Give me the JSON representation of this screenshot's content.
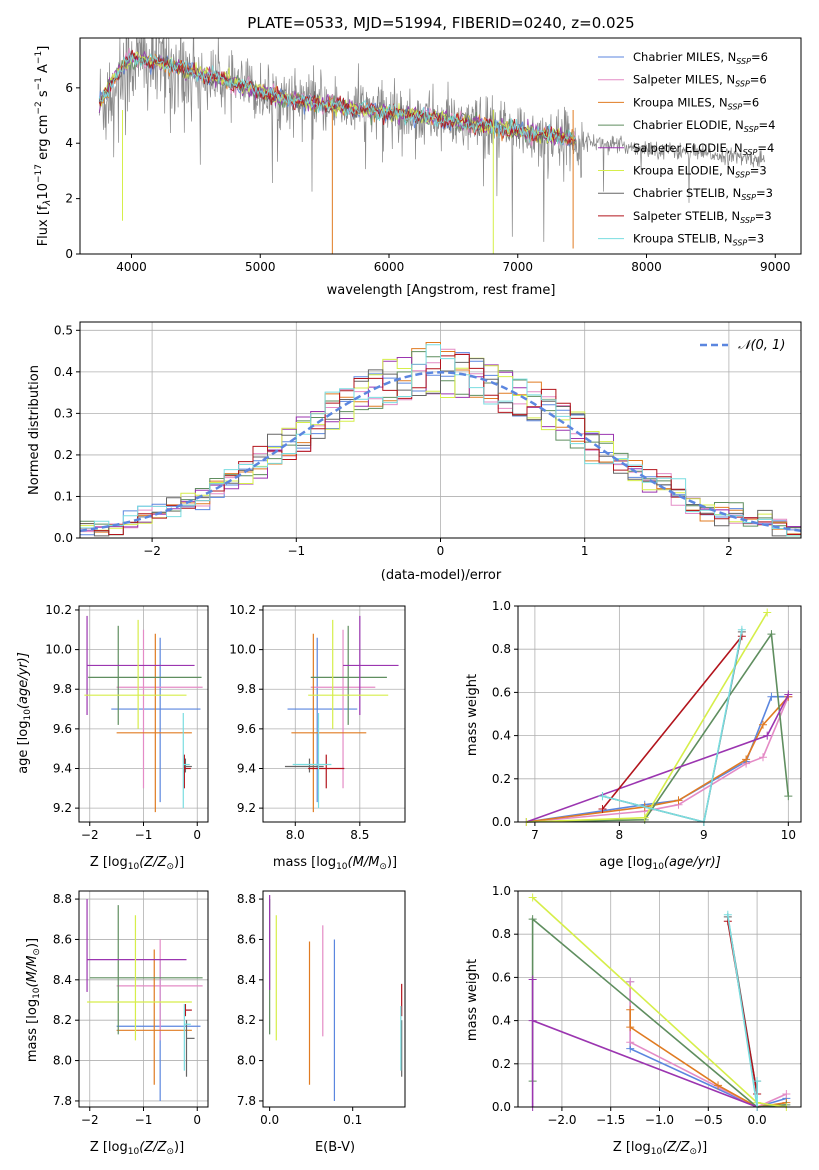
{
  "figure_title": "PLATE=0533, MJD=51994, FIBERID=0240, z=0.025",
  "colors": {
    "Chabrier MILES": "#5b86df",
    "Salpeter MILES": "#e48bc6",
    "Kroupa MILES": "#e07b22",
    "Chabrier ELODIE": "#5f8e5f",
    "Salpeter ELODIE": "#9b35b0",
    "Kroupa ELODIE": "#d6ee4a",
    "Chabrier STELIB": "#666666",
    "Salpeter STELIB": "#b2141c",
    "Kroupa STELIB": "#79dde0",
    "data": "#888888",
    "grid": "#b0b0b0",
    "normal": "#5b86df"
  },
  "chart_data": [
    {
      "id": "spectrum",
      "type": "line",
      "xlabel": "wavelength [Angstrom, rest frame]",
      "ylabel": "Flux [f",
      "ylabel_lambda": "λ",
      "ylabel_mid": "10",
      "ylabel_exp1": "−17",
      "ylabel_unit": " erg cm",
      "ylabel_exp2": "−2",
      "ylabel_s": " s",
      "ylabel_exp3": "−1",
      "ylabel_end": " A",
      "ylabel_exp4": "−1",
      "ylabel_close": "]",
      "xlim": [
        3600,
        9200
      ],
      "ylim": [
        0,
        7.8
      ],
      "xticks": [
        "4000",
        "5000",
        "6000",
        "7000",
        "8000",
        "9000"
      ],
      "yticks": [
        "0",
        "2",
        "4",
        "6"
      ],
      "legend_position": "top-right",
      "legend": [
        {
          "name": "Chabrier MILES",
          "nssp": "=6"
        },
        {
          "name": "Salpeter MILES",
          "nssp": "=6"
        },
        {
          "name": "Kroupa MILES",
          "nssp": "=6"
        },
        {
          "name": "Chabrier ELODIE",
          "nssp": "=4"
        },
        {
          "name": "Salpeter ELODIE",
          "nssp": "=4"
        },
        {
          "name": "Kroupa ELODIE",
          "nssp": "=3"
        },
        {
          "name": "Chabrier STELIB",
          "nssp": "=3"
        },
        {
          "name": "Salpeter STELIB",
          "nssp": "=3"
        },
        {
          "name": "Kroupa STELIB",
          "nssp": "=3"
        }
      ],
      "legend_n": "N",
      "legend_sub": "SSP",
      "data_x_range": [
        3750,
        8920
      ],
      "model_trend": {
        "x": [
          3750,
          3900,
          4000,
          4300,
          4700,
          5200,
          5800,
          6300,
          6800,
          7200,
          7500
        ],
        "y": [
          5.4,
          6.6,
          7.1,
          6.8,
          6.3,
          5.6,
          5.2,
          4.95,
          4.6,
          4.3,
          4.1
        ]
      },
      "data_trend": {
        "x": [
          3750,
          4000,
          4500,
          5000,
          6000,
          7000,
          8000,
          8500,
          8920
        ],
        "y": [
          5.3,
          7.0,
          6.5,
          5.8,
          5.1,
          4.4,
          3.8,
          3.6,
          3.4
        ]
      }
    },
    {
      "id": "residuals",
      "type": "bar",
      "xlabel": "(data-model)/error",
      "ylabel": "Normed distribution",
      "xlim": [
        -2.5,
        2.5
      ],
      "ylim": [
        0,
        0.52
      ],
      "xticks": [
        "−2",
        "−1",
        "0",
        "1",
        "2"
      ],
      "yticks": [
        "0.0",
        "0.1",
        "0.2",
        "0.3",
        "0.4",
        "0.5"
      ],
      "legend_position": "top-right",
      "normal_label": "𝒩(0, 1)",
      "bin_width": 0.1
    },
    {
      "id": "age_vs_Z",
      "type": "scatter",
      "xlabel": "Z [log",
      "xlabel_sub": "10",
      "xlabel_arg": "(Z/Z",
      "xlabel_sun": "⊙",
      "xlabel_end": ")]",
      "ylabel": "age  [log",
      "ylabel_sub": "10",
      "ylabel_arg": "(age/yr)]",
      "xlim": [
        -2.2,
        0.2
      ],
      "ylim": [
        9.13,
        10.22
      ],
      "xticks": [
        "−2",
        "−1",
        "0"
      ],
      "yticks": [
        "9.2",
        "9.4",
        "9.6",
        "9.8",
        "10.0",
        "10.2"
      ],
      "points": [
        {
          "s": "Chabrier MILES",
          "x": -0.69,
          "y": 9.7,
          "xe": [
            -1.6,
            0.06
          ],
          "ye": [
            9.23,
            10.06
          ]
        },
        {
          "s": "Salpeter MILES",
          "x": -1.0,
          "y": 9.81,
          "xe": [
            -1.5,
            0.1
          ],
          "ye": [
            9.3,
            10.1
          ]
        },
        {
          "s": "Kroupa MILES",
          "x": -0.78,
          "y": 9.58,
          "xe": [
            -1.5,
            -0.1
          ],
          "ye": [
            9.18,
            10.08
          ]
        },
        {
          "s": "Chabrier ELODIE",
          "x": -1.47,
          "y": 9.86,
          "xe": [
            -2.03,
            0.08
          ],
          "ye": [
            9.62,
            10.12
          ]
        },
        {
          "s": "Salpeter ELODIE",
          "x": -2.05,
          "y": 9.92,
          "xe": [
            -2.05,
            -0.05
          ],
          "ye": [
            9.67,
            10.17
          ]
        },
        {
          "s": "Kroupa ELODIE",
          "x": -1.1,
          "y": 9.77,
          "xe": [
            -2.1,
            -0.2
          ],
          "ye": [
            9.6,
            10.15
          ]
        },
        {
          "s": "Chabrier STELIB",
          "x": -0.22,
          "y": 9.41,
          "xe": [
            -0.22,
            -0.1
          ],
          "ye": [
            9.38,
            9.45
          ]
        },
        {
          "s": "Salpeter STELIB",
          "x": -0.24,
          "y": 9.4,
          "xe": [
            -0.24,
            -0.12
          ],
          "ye": [
            9.3,
            9.47
          ]
        },
        {
          "s": "Kroupa STELIB",
          "x": -0.26,
          "y": 9.42,
          "xe": [
            -0.26,
            -0.14
          ],
          "ye": [
            9.2,
            9.68
          ]
        }
      ]
    },
    {
      "id": "age_vs_mass",
      "type": "scatter",
      "xlabel": "mass [log",
      "xlabel_sub": "10",
      "xlabel_arg": "(M/M",
      "xlabel_sun": "⊙",
      "xlabel_end": ")]",
      "xlim": [
        7.75,
        8.85
      ],
      "ylim": [
        9.13,
        10.22
      ],
      "xticks": [
        "8.0",
        "8.5"
      ],
      "xtick_vals": [
        8.0,
        8.5
      ],
      "yticks": [
        "9.2",
        "9.4",
        "9.6",
        "9.8",
        "10.0",
        "10.2"
      ],
      "points": [
        {
          "s": "Chabrier MILES",
          "x": 8.17,
          "y": 9.7,
          "xe": [
            7.94,
            8.48
          ],
          "ye": [
            9.23,
            10.06
          ]
        },
        {
          "s": "Salpeter MILES",
          "x": 8.37,
          "y": 9.81,
          "xe": [
            8.12,
            8.62
          ],
          "ye": [
            9.3,
            10.1
          ]
        },
        {
          "s": "Kroupa MILES",
          "x": 8.14,
          "y": 9.58,
          "xe": [
            7.97,
            8.55
          ],
          "ye": [
            9.18,
            10.08
          ]
        },
        {
          "s": "Chabrier ELODIE",
          "x": 8.41,
          "y": 9.86,
          "xe": [
            8.12,
            8.71
          ],
          "ye": [
            9.62,
            10.12
          ]
        },
        {
          "s": "Salpeter ELODIE",
          "x": 8.5,
          "y": 9.92,
          "xe": [
            8.37,
            8.8
          ],
          "ye": [
            9.67,
            10.17
          ]
        },
        {
          "s": "Kroupa ELODIE",
          "x": 8.29,
          "y": 9.77,
          "xe": [
            8.1,
            8.72
          ],
          "ye": [
            9.6,
            10.15
          ]
        },
        {
          "s": "Chabrier STELIB",
          "x": 8.11,
          "y": 9.41,
          "xe": [
            7.92,
            8.22
          ],
          "ye": [
            9.38,
            9.45
          ]
        },
        {
          "s": "Salpeter STELIB",
          "x": 8.24,
          "y": 9.4,
          "xe": [
            8.1,
            8.38
          ],
          "ye": [
            9.3,
            9.47
          ]
        },
        {
          "s": "Kroupa STELIB",
          "x": 8.18,
          "y": 9.42,
          "xe": [
            7.98,
            8.28
          ],
          "ye": [
            9.2,
            9.68
          ]
        }
      ]
    },
    {
      "id": "mass_weight_vs_age",
      "type": "line",
      "xlabel": "age  [log",
      "xlabel_sub": "10",
      "xlabel_arg": "(age/yr)]",
      "ylabel": "mass weight",
      "xlim": [
        6.8,
        10.15
      ],
      "ylim": [
        0,
        1
      ],
      "xticks": [
        "7",
        "8",
        "9",
        "10"
      ],
      "xtick_vals": [
        7,
        8,
        9,
        10
      ],
      "yticks": [
        "0.0",
        "0.2",
        "0.4",
        "0.6",
        "0.8",
        "1.0"
      ],
      "series": [
        {
          "s": "Chabrier MILES",
          "x": [
            6.9,
            8.3,
            8.7,
            9.5,
            9.8,
            10.0
          ],
          "y": [
            0.0,
            0.08,
            0.1,
            0.28,
            0.58,
            0.58
          ]
        },
        {
          "s": "Salpeter MILES",
          "x": [
            6.9,
            8.3,
            8.7,
            9.5,
            9.7,
            10.0
          ],
          "y": [
            0.0,
            0.05,
            0.08,
            0.27,
            0.3,
            0.58
          ]
        },
        {
          "s": "Kroupa MILES",
          "x": [
            6.9,
            8.3,
            8.7,
            9.5,
            9.7,
            10.0
          ],
          "y": [
            0.0,
            0.07,
            0.1,
            0.29,
            0.45,
            0.58
          ]
        },
        {
          "s": "Chabrier ELODIE",
          "x": [
            6.9,
            8.3,
            9.8,
            10.0
          ],
          "y": [
            0.0,
            0.01,
            0.87,
            0.12
          ]
        },
        {
          "s": "Salpeter ELODIE",
          "x": [
            6.9,
            9.75,
            10.0
          ],
          "y": [
            0.0,
            0.4,
            0.59
          ]
        },
        {
          "s": "Kroupa ELODIE",
          "x": [
            6.9,
            8.3,
            9.75
          ],
          "y": [
            0.0,
            0.02,
            0.97
          ]
        },
        {
          "s": "Chabrier STELIB",
          "x": [
            7.8,
            9.0,
            9.45
          ],
          "y": [
            0.12,
            0.0,
            0.88
          ]
        },
        {
          "s": "Salpeter STELIB",
          "x": [
            7.8,
            9.45
          ],
          "y": [
            0.06,
            0.86
          ]
        },
        {
          "s": "Kroupa STELIB",
          "x": [
            7.8,
            9.0,
            9.45
          ],
          "y": [
            0.12,
            0.0,
            0.89
          ]
        }
      ]
    },
    {
      "id": "mass_vs_Z",
      "type": "scatter",
      "xlabel": "Z [log",
      "xlabel_sub": "10",
      "xlabel_arg": "(Z/Z",
      "xlabel_sun": "⊙",
      "xlabel_end": ")]",
      "ylabel": "mass [log",
      "ylabel_sub": "10",
      "ylabel_arg": "(M/M",
      "ylabel_sun": "⊙",
      "ylabel_end": ")]",
      "xlim": [
        -2.2,
        0.2
      ],
      "ylim": [
        7.77,
        8.84
      ],
      "xticks": [
        "−2",
        "−1",
        "0"
      ],
      "xtick_vals": [
        -2,
        -1,
        0
      ],
      "yticks": [
        "7.8",
        "8.0",
        "8.2",
        "8.4",
        "8.6",
        "8.8"
      ],
      "ytick_vals": [
        7.8,
        8.0,
        8.2,
        8.4,
        8.6,
        8.8
      ],
      "points": [
        {
          "s": "Chabrier MILES",
          "x": -0.69,
          "y": 8.17,
          "xe": [
            -1.5,
            0.06
          ],
          "ye": [
            7.8,
            8.5
          ]
        },
        {
          "s": "Salpeter MILES",
          "x": -0.69,
          "y": 8.37,
          "xe": [
            -1.5,
            0.1
          ],
          "ye": [
            8.1,
            8.6
          ]
        },
        {
          "s": "Kroupa MILES",
          "x": -0.8,
          "y": 8.15,
          "xe": [
            -1.5,
            -0.1
          ],
          "ye": [
            7.88,
            8.55
          ]
        },
        {
          "s": "Chabrier ELODIE",
          "x": -1.47,
          "y": 8.41,
          "xe": [
            -2.0,
            0.1
          ],
          "ye": [
            8.13,
            8.77
          ]
        },
        {
          "s": "Salpeter ELODIE",
          "x": -2.05,
          "y": 8.5,
          "xe": [
            -2.05,
            -0.2
          ],
          "ye": [
            8.34,
            8.8
          ]
        },
        {
          "s": "Kroupa ELODIE",
          "x": -1.15,
          "y": 8.29,
          "xe": [
            -2.05,
            -0.1
          ],
          "ye": [
            8.1,
            8.72
          ]
        },
        {
          "s": "Chabrier STELIB",
          "x": -0.2,
          "y": 8.11,
          "xe": [
            -0.2,
            -0.05
          ],
          "ye": [
            7.92,
            8.2
          ]
        },
        {
          "s": "Salpeter STELIB",
          "x": -0.22,
          "y": 8.25,
          "xe": [
            -0.22,
            -0.1
          ],
          "ye": [
            8.22,
            8.28
          ]
        },
        {
          "s": "Kroupa STELIB",
          "x": -0.24,
          "y": 8.18,
          "xe": [
            -0.24,
            -0.12
          ],
          "ye": [
            7.95,
            8.28
          ]
        }
      ]
    },
    {
      "id": "mass_vs_ebv",
      "type": "scatter",
      "xlabel": "E(B-V)",
      "xlim": [
        -0.008,
        0.163
      ],
      "ylim": [
        7.77,
        8.84
      ],
      "xticks": [
        "0.0",
        "0.1"
      ],
      "xtick_vals": [
        0.0,
        0.1
      ],
      "yticks": [
        "7.8",
        "8.0",
        "8.2",
        "8.4",
        "8.6",
        "8.8"
      ],
      "ytick_vals": [
        7.8,
        8.0,
        8.2,
        8.4,
        8.6,
        8.8
      ],
      "points": [
        {
          "s": "Chabrier MILES",
          "x": 0.078,
          "y": 8.17,
          "ye": [
            7.8,
            8.6
          ]
        },
        {
          "s": "Salpeter MILES",
          "x": 0.064,
          "y": 8.37,
          "ye": [
            8.12,
            8.67
          ]
        },
        {
          "s": "Kroupa MILES",
          "x": 0.048,
          "y": 8.15,
          "ye": [
            7.88,
            8.59
          ]
        },
        {
          "s": "Chabrier ELODIE",
          "x": 0.0,
          "y": 8.41,
          "ye": [
            8.13,
            8.8
          ]
        },
        {
          "s": "Salpeter ELODIE",
          "x": 0.0,
          "y": 8.5,
          "ye": [
            8.35,
            8.82
          ]
        },
        {
          "s": "Kroupa ELODIE",
          "x": 0.008,
          "y": 8.29,
          "ye": [
            8.1,
            8.72
          ]
        },
        {
          "s": "Chabrier STELIB",
          "x": 0.159,
          "y": 8.11,
          "ye": [
            7.92,
            8.2
          ]
        },
        {
          "s": "Salpeter STELIB",
          "x": 0.159,
          "y": 8.25,
          "ye": [
            8.22,
            8.38
          ]
        },
        {
          "s": "Kroupa STELIB",
          "x": 0.158,
          "y": 8.18,
          "ye": [
            7.95,
            8.27
          ]
        }
      ]
    },
    {
      "id": "mass_weight_vs_Z",
      "type": "line",
      "xlabel": "Z [log",
      "xlabel_sub": "10",
      "xlabel_arg": "(Z/Z",
      "xlabel_sun": "⊙",
      "xlabel_end": ")]",
      "ylabel": "mass weight",
      "xlim": [
        -2.45,
        0.45
      ],
      "ylim": [
        0,
        1
      ],
      "xticks": [
        "−2.0",
        "−1.5",
        "−1.0",
        "−0.5",
        "0.0"
      ],
      "xtick_vals": [
        -2.0,
        -1.5,
        -1.0,
        -0.5,
        0.0
      ],
      "yticks": [
        "0.0",
        "0.2",
        "0.4",
        "0.6",
        "0.8",
        "1.0"
      ],
      "ytick_vals": [
        0,
        0.2,
        0.4,
        0.6,
        0.8,
        1.0
      ],
      "series": [
        {
          "s": "Chabrier MILES",
          "x": [
            -1.3,
            -1.3,
            0.0,
            0.3
          ],
          "y": [
            0.58,
            0.27,
            0.0,
            0.04
          ]
        },
        {
          "s": "Salpeter MILES",
          "x": [
            -1.3,
            -1.3,
            0.0,
            0.3
          ],
          "y": [
            0.58,
            0.3,
            0.0,
            0.06
          ]
        },
        {
          "s": "Kroupa MILES",
          "x": [
            -1.3,
            -1.3,
            -0.4,
            0.0,
            0.3
          ],
          "y": [
            0.45,
            0.37,
            0.1,
            0.0,
            0.02
          ]
        },
        {
          "s": "Chabrier ELODIE",
          "x": [
            -2.3,
            -2.3,
            0.0,
            0.3
          ],
          "y": [
            0.12,
            0.87,
            0.0,
            0.01
          ]
        },
        {
          "s": "Salpeter ELODIE",
          "x": [
            -2.3,
            -2.3,
            -2.3,
            0.0
          ],
          "y": [
            0.59,
            0.0,
            0.4,
            0.0
          ]
        },
        {
          "s": "Kroupa ELODIE",
          "x": [
            -2.3,
            0.0,
            0.3
          ],
          "y": [
            0.97,
            0.02,
            0.0
          ]
        },
        {
          "s": "Chabrier STELIB",
          "x": [
            -0.3,
            0.0,
            0.0
          ],
          "y": [
            0.88,
            0.06,
            0.12
          ]
        },
        {
          "s": "Salpeter STELIB",
          "x": [
            -0.3,
            0.0
          ],
          "y": [
            0.86,
            0.06
          ]
        },
        {
          "s": "Kroupa STELIB",
          "x": [
            -0.3,
            0.0,
            0.0
          ],
          "y": [
            0.89,
            0.0,
            0.12
          ]
        }
      ]
    }
  ]
}
